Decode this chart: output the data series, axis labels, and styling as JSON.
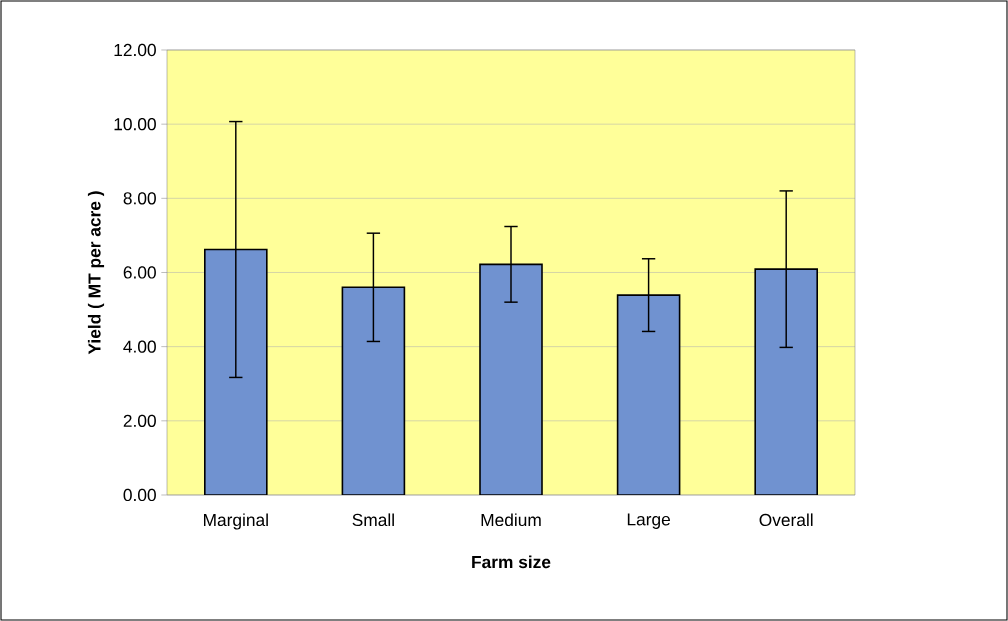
{
  "chart_data": {
    "type": "bar",
    "xlabel": "Farm size",
    "ylabel": "Yield ( MT per acre )",
    "categories": [
      "Marginal",
      "Small",
      "Medium",
      "Large",
      "Overall"
    ],
    "values": [
      6.62,
      5.6,
      6.22,
      5.39,
      6.09
    ],
    "errors": [
      3.45,
      1.46,
      1.02,
      0.98,
      2.11
    ],
    "color": "#7092d0",
    "ylim": [
      0,
      12
    ],
    "yticks": [
      {
        "value": 0,
        "label": "0.00"
      },
      {
        "value": 2,
        "label": "2.00"
      },
      {
        "value": 4,
        "label": "4.00"
      },
      {
        "value": 6,
        "label": "6.00"
      },
      {
        "value": 8,
        "label": "8.00"
      },
      {
        "value": 10,
        "label": "10.00"
      },
      {
        "value": 12,
        "label": "12.00"
      }
    ],
    "grid": "y"
  }
}
